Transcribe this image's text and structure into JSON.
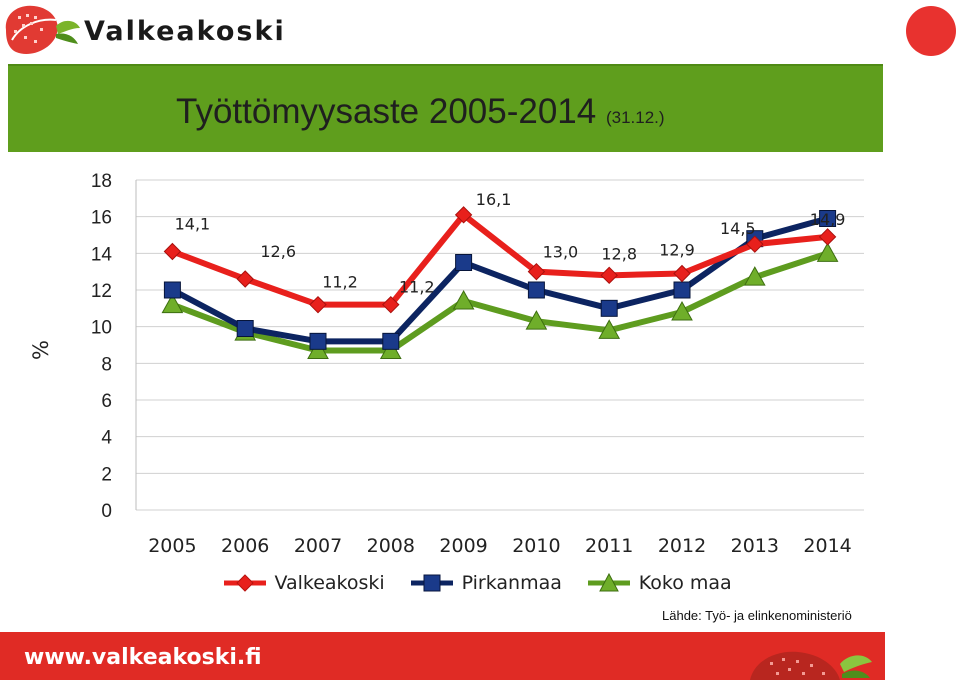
{
  "brand": {
    "name": "Valkeakoski",
    "url": "www.valkeakoski.fi"
  },
  "title": {
    "main": "Työttömyysaste 2005-2014",
    "date": "(31.12.)"
  },
  "source": "Lähde: Työ- ja elinkenoministeriö",
  "colors": {
    "banner": "#5f9e1d",
    "footer": "#e02b25",
    "valkeakoski": "#e8201c",
    "pirkanmaa": "#0c2461",
    "koko_maa": "#5e9c1f"
  },
  "chart_data": {
    "type": "line",
    "ylabel": "%",
    "xlabel": "",
    "ylim": [
      0,
      18
    ],
    "yticks": [
      0,
      2,
      4,
      6,
      8,
      10,
      12,
      14,
      16,
      18
    ],
    "grid": true,
    "legend_position": "bottom",
    "x": [
      "2005",
      "2006",
      "2007",
      "2008",
      "2009",
      "2010",
      "2011",
      "2012",
      "2013",
      "2014"
    ],
    "series": [
      {
        "name": "Valkeakoski",
        "marker": "diamond",
        "color": "#e8201c",
        "values": [
          14.1,
          12.6,
          11.2,
          11.2,
          16.1,
          13.0,
          12.8,
          12.9,
          14.5,
          14.9
        ],
        "labels": [
          "14,1",
          "12,6",
          "11,2",
          "11,2",
          "16,1",
          "13,0",
          "12,8",
          "12,9",
          "14,5",
          "14,9"
        ]
      },
      {
        "name": "Pirkanmaa",
        "marker": "square",
        "color": "#0c2461",
        "values": [
          12.0,
          9.9,
          9.2,
          9.2,
          13.5,
          12.0,
          11.0,
          12.0,
          14.8,
          15.9
        ]
      },
      {
        "name": "Koko maa",
        "marker": "triangle",
        "color": "#5e9c1f",
        "values": [
          11.2,
          9.7,
          8.7,
          8.7,
          11.4,
          10.3,
          9.8,
          10.8,
          12.7,
          14.0
        ]
      }
    ]
  }
}
